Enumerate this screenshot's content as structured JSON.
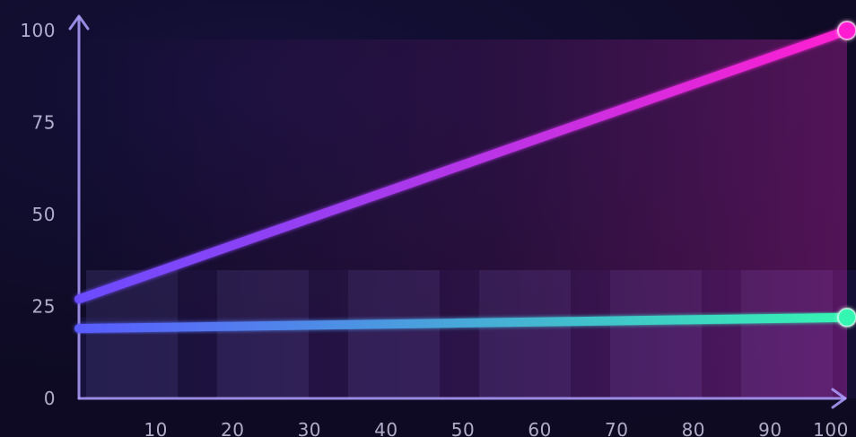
{
  "chart_data": {
    "type": "line",
    "title": "",
    "xlabel": "",
    "ylabel": "",
    "x": [
      0,
      100
    ],
    "xlim": [
      0,
      100
    ],
    "ylim": [
      0,
      100
    ],
    "x_ticks": [
      10,
      20,
      30,
      40,
      50,
      60,
      70,
      80,
      90,
      100
    ],
    "y_ticks": [
      0,
      25,
      50,
      75,
      100
    ],
    "grid": false,
    "series": [
      {
        "values": [
          27,
          100
        ],
        "color_start": "#6b4cff",
        "color_end": "#ff1fd1",
        "end_marker": true
      },
      {
        "values": [
          19,
          22
        ],
        "color_start": "#5a5cff",
        "color_end": "#35f5b2",
        "end_marker": true
      }
    ],
    "background_bars": {
      "bar_color": "#2f2a5d",
      "gap_color": "#17123a",
      "magenta_glow": "#ff2bd6"
    }
  }
}
